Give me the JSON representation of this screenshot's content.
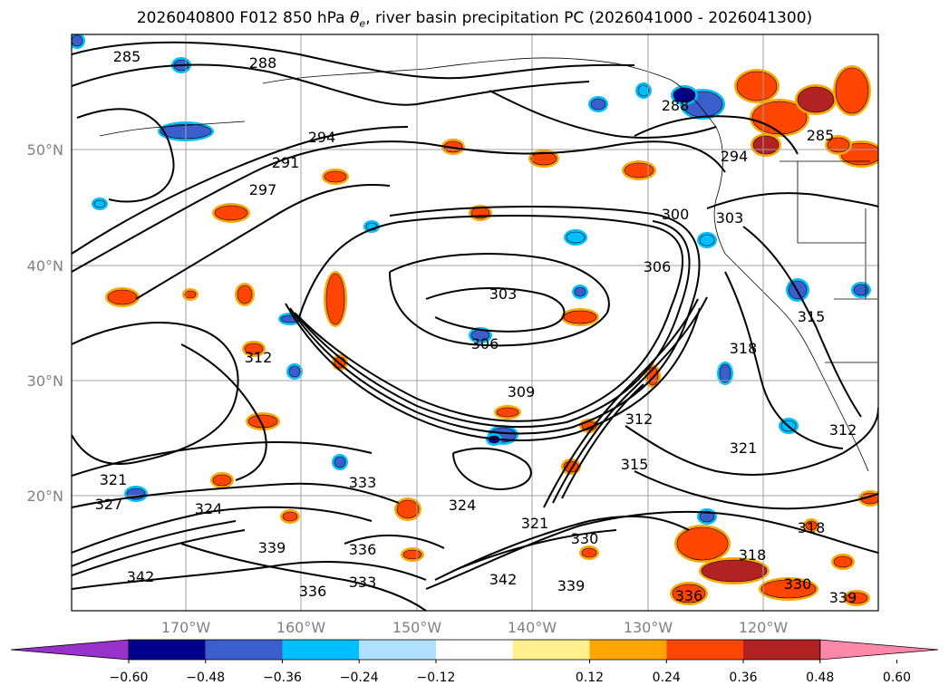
{
  "title": {
    "prefix": "2026040800 F012 850 hPa ",
    "symbol_base": "θ",
    "symbol_sub": "e",
    "suffix": ", river basin precipitation PC (2026041000 - 2026041300)"
  },
  "map": {
    "lon_labels": [
      "170°W",
      "160°W",
      "150°W",
      "140°W",
      "130°W",
      "120°W"
    ],
    "lat_labels": [
      "50°N",
      "40°N",
      "30°N",
      "20°N"
    ]
  },
  "contour_labels": [
    "285",
    "288",
    "291",
    "294",
    "297",
    "300",
    "303",
    "306",
    "309",
    "312",
    "315",
    "318",
    "321",
    "324",
    "327",
    "330",
    "333",
    "336",
    "339",
    "342"
  ],
  "colorbar": {
    "colors": [
      "#9932cc",
      "#00008b",
      "#3a5fcd",
      "#00bfff",
      "#b0e0ff",
      "#ffffff",
      "#fff08c",
      "#ffa500",
      "#ff4500",
      "#b22222",
      "#ff88aa"
    ],
    "tick_labels": [
      "−0.60",
      "−0.48",
      "−0.36",
      "−0.24",
      "−0.12",
      "0.12",
      "0.24",
      "0.36",
      "0.48",
      "0.60"
    ]
  },
  "colors": {
    "contour": "#000000",
    "grid": "#a0a0a0",
    "tick_text": "#808080"
  }
}
